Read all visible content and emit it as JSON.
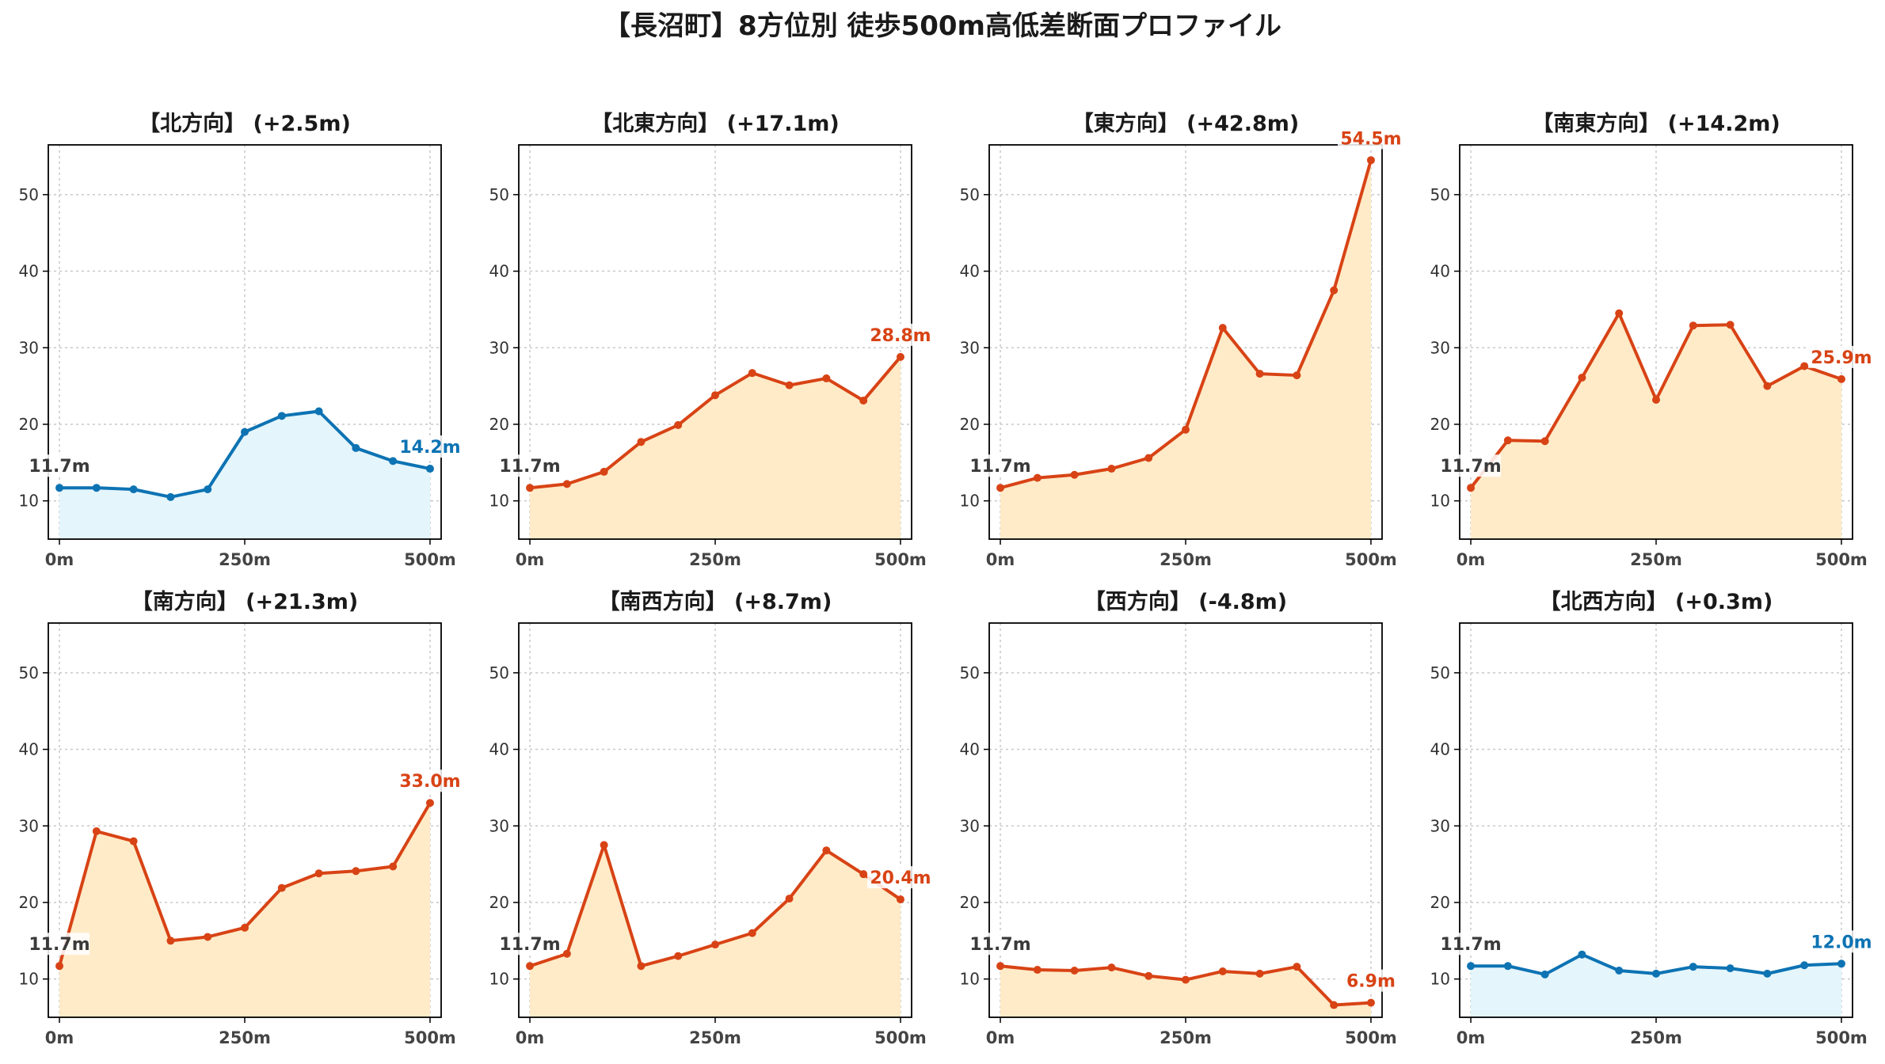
{
  "title": "【長沼町】8方位別 徒歩500m高低差断面プロファイル",
  "colors": {
    "up_line": "#d84315",
    "up_fill": "#ffebc8",
    "flat_line": "#0d73b3",
    "flat_fill": "#e4f5fc",
    "grid": "#c8c8c8",
    "tick_label": "#333333",
    "title": "#1a1a1a"
  },
  "chart_data": [
    {
      "type": "area",
      "title": "【北方向】 (+2.5m)",
      "style": "flat",
      "x": [
        0,
        50,
        100,
        150,
        200,
        250,
        300,
        350,
        400,
        450,
        500
      ],
      "y": [
        11.7,
        11.7,
        11.5,
        10.5,
        11.5,
        19.0,
        21.1,
        21.7,
        16.9,
        15.2,
        14.2
      ],
      "start_label": "11.7m",
      "end_label": "14.2m",
      "xticks": [
        "0m",
        "250m",
        "500m"
      ],
      "yticks": [
        10,
        20,
        30,
        40,
        50
      ],
      "xlim": [
        -15,
        515
      ],
      "ylim": [
        5,
        56.5
      ],
      "grid": true
    },
    {
      "type": "area",
      "title": "【北東方向】 (+17.1m)",
      "style": "up",
      "x": [
        0,
        50,
        100,
        150,
        200,
        250,
        300,
        350,
        400,
        450,
        500
      ],
      "y": [
        11.7,
        12.2,
        13.8,
        17.7,
        19.9,
        23.8,
        26.7,
        25.1,
        26.0,
        23.1,
        28.8
      ],
      "start_label": "11.7m",
      "end_label": "28.8m",
      "xticks": [
        "0m",
        "250m",
        "500m"
      ],
      "yticks": [
        10,
        20,
        30,
        40,
        50
      ],
      "xlim": [
        -15,
        515
      ],
      "ylim": [
        5,
        56.5
      ],
      "grid": true
    },
    {
      "type": "area",
      "title": "【東方向】 (+42.8m)",
      "style": "up",
      "x": [
        0,
        50,
        100,
        150,
        200,
        250,
        300,
        350,
        400,
        450,
        500
      ],
      "y": [
        11.7,
        13.0,
        13.4,
        14.2,
        15.6,
        19.3,
        32.6,
        26.6,
        26.4,
        37.5,
        54.5
      ],
      "start_label": "11.7m",
      "end_label": "54.5m",
      "xticks": [
        "0m",
        "250m",
        "500m"
      ],
      "yticks": [
        10,
        20,
        30,
        40,
        50
      ],
      "xlim": [
        -15,
        515
      ],
      "ylim": [
        5,
        56.5
      ],
      "grid": true
    },
    {
      "type": "area",
      "title": "【南東方向】 (+14.2m)",
      "style": "up",
      "x": [
        0,
        50,
        100,
        150,
        200,
        250,
        300,
        350,
        400,
        450,
        500
      ],
      "y": [
        11.7,
        17.9,
        17.8,
        26.1,
        34.5,
        23.2,
        32.9,
        33.0,
        25.0,
        27.6,
        25.9
      ],
      "start_label": "11.7m",
      "end_label": "25.9m",
      "xticks": [
        "0m",
        "250m",
        "500m"
      ],
      "yticks": [
        10,
        20,
        30,
        40,
        50
      ],
      "xlim": [
        -15,
        515
      ],
      "ylim": [
        5,
        56.5
      ],
      "grid": true
    },
    {
      "type": "area",
      "title": "【南方向】 (+21.3m)",
      "style": "up",
      "x": [
        0,
        50,
        100,
        150,
        200,
        250,
        300,
        350,
        400,
        450,
        500
      ],
      "y": [
        11.7,
        29.3,
        28.0,
        15.0,
        15.5,
        16.7,
        21.9,
        23.8,
        24.1,
        24.7,
        33.0
      ],
      "start_label": "11.7m",
      "end_label": "33.0m",
      "xticks": [
        "0m",
        "250m",
        "500m"
      ],
      "yticks": [
        10,
        20,
        30,
        40,
        50
      ],
      "xlim": [
        -15,
        515
      ],
      "ylim": [
        5,
        56.5
      ],
      "grid": true
    },
    {
      "type": "area",
      "title": "【南西方向】 (+8.7m)",
      "style": "up",
      "x": [
        0,
        50,
        100,
        150,
        200,
        250,
        300,
        350,
        400,
        450,
        500
      ],
      "y": [
        11.7,
        13.3,
        27.5,
        11.7,
        13.0,
        14.5,
        16.0,
        20.5,
        26.8,
        23.7,
        20.4
      ],
      "start_label": "11.7m",
      "end_label": "20.4m",
      "xticks": [
        "0m",
        "250m",
        "500m"
      ],
      "yticks": [
        10,
        20,
        30,
        40,
        50
      ],
      "xlim": [
        -15,
        515
      ],
      "ylim": [
        5,
        56.5
      ],
      "grid": true
    },
    {
      "type": "area",
      "title": "【西方向】 (-4.8m)",
      "style": "up",
      "x": [
        0,
        50,
        100,
        150,
        200,
        250,
        300,
        350,
        400,
        450,
        500
      ],
      "y": [
        11.7,
        11.2,
        11.1,
        11.5,
        10.4,
        9.9,
        11.0,
        10.7,
        11.6,
        6.6,
        6.9
      ],
      "start_label": "11.7m",
      "end_label": "6.9m",
      "xticks": [
        "0m",
        "250m",
        "500m"
      ],
      "yticks": [
        10,
        20,
        30,
        40,
        50
      ],
      "xlim": [
        -15,
        515
      ],
      "ylim": [
        5,
        56.5
      ],
      "grid": true
    },
    {
      "type": "area",
      "title": "【北西方向】 (+0.3m)",
      "style": "flat",
      "x": [
        0,
        50,
        100,
        150,
        200,
        250,
        300,
        350,
        400,
        450,
        500
      ],
      "y": [
        11.7,
        11.7,
        10.6,
        13.2,
        11.1,
        10.7,
        11.6,
        11.4,
        10.7,
        11.8,
        12.0
      ],
      "start_label": "11.7m",
      "end_label": "12.0m",
      "xticks": [
        "0m",
        "250m",
        "500m"
      ],
      "yticks": [
        10,
        20,
        30,
        40,
        50
      ],
      "xlim": [
        -15,
        515
      ],
      "ylim": [
        5,
        56.5
      ],
      "grid": true
    }
  ]
}
